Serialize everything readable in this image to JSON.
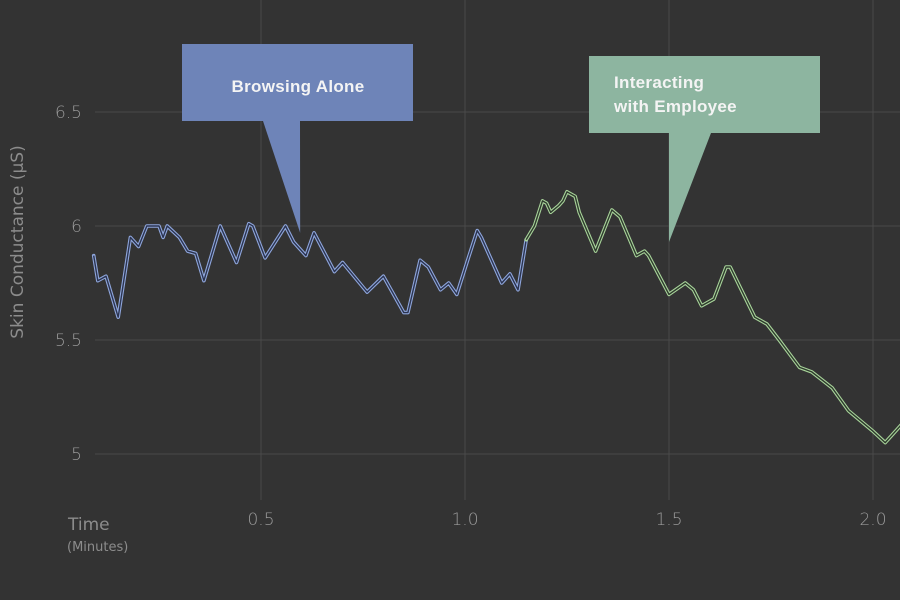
{
  "chart_data": {
    "type": "line",
    "title": "",
    "xlabel": "Time",
    "xlabel_sub": "(Minutes)",
    "ylabel": "Skin Conductance (µS)",
    "xlim": [
      0,
      2.066
    ],
    "ylim": [
      4.85,
      6.99
    ],
    "x_ticks": [
      0.5,
      1.0,
      1.5,
      2.0
    ],
    "x_tick_labels": [
      "0.5",
      "1.0",
      "1.5",
      "2.0"
    ],
    "y_ticks": [
      5,
      5.5,
      6,
      6.5
    ],
    "y_tick_labels": [
      "5",
      "5.5",
      "6",
      "6.5"
    ],
    "grid": true,
    "background": "#333333",
    "series": [
      {
        "color": "#8fa6dc",
        "x": [
          0.09,
          0.1,
          0.12,
          0.15,
          0.18,
          0.2,
          0.22,
          0.25,
          0.26,
          0.27,
          0.3,
          0.32,
          0.34,
          0.36,
          0.4,
          0.44,
          0.47,
          0.48,
          0.51,
          0.56,
          0.58,
          0.61,
          0.63,
          0.68,
          0.7,
          0.76,
          0.8,
          0.85,
          0.86,
          0.89,
          0.91,
          0.94,
          0.96,
          0.98,
          1.01,
          1.03,
          1.04,
          1.09,
          1.11,
          1.13,
          1.15
        ],
        "y": [
          5.87,
          5.76,
          5.78,
          5.6,
          5.95,
          5.91,
          6.0,
          6.0,
          5.95,
          6.0,
          5.95,
          5.89,
          5.88,
          5.76,
          6.0,
          5.84,
          6.01,
          6.0,
          5.86,
          6.0,
          5.93,
          5.87,
          5.97,
          5.8,
          5.84,
          5.71,
          5.78,
          5.62,
          5.62,
          5.85,
          5.82,
          5.72,
          5.75,
          5.7,
          5.87,
          5.98,
          5.95,
          5.75,
          5.79,
          5.72,
          5.94
        ]
      },
      {
        "color": "#a8d49a",
        "x": [
          1.15,
          1.17,
          1.19,
          1.2,
          1.21,
          1.23,
          1.24,
          1.25,
          1.27,
          1.28,
          1.32,
          1.36,
          1.38,
          1.42,
          1.44,
          1.45,
          1.5,
          1.54,
          1.56,
          1.58,
          1.61,
          1.64,
          1.65,
          1.71,
          1.74,
          1.77,
          1.82,
          1.85,
          1.9,
          1.94,
          2.0,
          2.03,
          2.07
        ],
        "y": [
          5.94,
          6.0,
          6.11,
          6.1,
          6.06,
          6.09,
          6.11,
          6.15,
          6.13,
          6.06,
          5.89,
          6.07,
          6.04,
          5.87,
          5.89,
          5.87,
          5.7,
          5.75,
          5.72,
          5.65,
          5.68,
          5.82,
          5.82,
          5.6,
          5.57,
          5.5,
          5.38,
          5.36,
          5.29,
          5.19,
          5.1,
          5.05,
          5.13
        ]
      }
    ],
    "annotations": [
      {
        "lines": [
          "Browsing Alone"
        ],
        "x": 0.596,
        "y": 5.97,
        "color": "#6e84b8"
      },
      {
        "lines": [
          "Interacting",
          "with Employee"
        ],
        "x": 1.5,
        "y": 5.93,
        "color": "#8db5a0"
      }
    ]
  }
}
